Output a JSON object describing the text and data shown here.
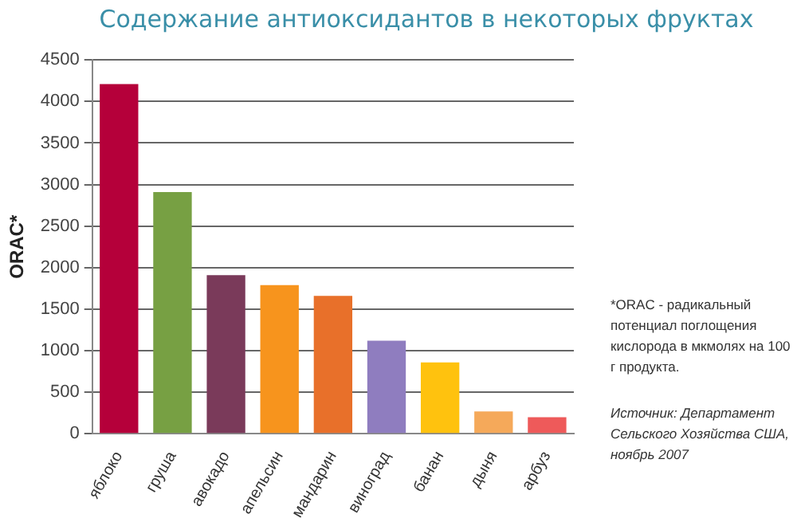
{
  "chart_data": {
    "type": "bar",
    "title": "Содержание антиоксидантов в некоторых фруктах",
    "ylabel": "ORAC*",
    "categories": [
      "яблоко",
      "груша",
      "авокадо",
      "апельсин",
      "мандарин",
      "виноград",
      "банан",
      "дыня",
      "арбуз"
    ],
    "values": [
      4210,
      2910,
      1910,
      1790,
      1660,
      1120,
      860,
      270,
      200
    ],
    "colors": [
      "#b5003a",
      "#77a043",
      "#7a3a5a",
      "#f7941d",
      "#e8702a",
      "#8f7dbf",
      "#ffc20e",
      "#f5a95a",
      "#ee5a5a"
    ],
    "ylim": [
      0,
      4500
    ],
    "yticks": [
      0,
      500,
      1000,
      1500,
      2000,
      2500,
      3000,
      3500,
      4000,
      4500
    ],
    "grid": "y",
    "annotations": [
      "*ORAC - радикальный потенциал поглощения кислорода в мкмолях на 100 г продукта.",
      "Источник: Департамент Сельского Хозяйства США, ноябрь 2007"
    ]
  }
}
